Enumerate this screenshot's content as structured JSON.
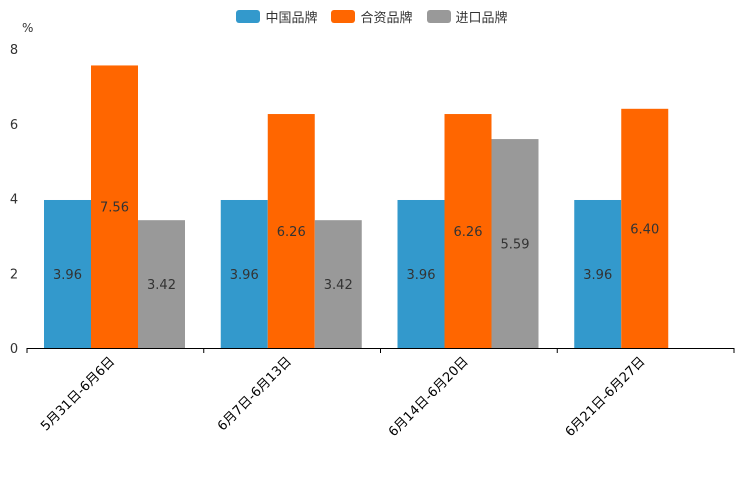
{
  "chart_data": {
    "type": "bar",
    "title": "",
    "xlabel": "",
    "ylabel": "%",
    "ylim": [
      0,
      8
    ],
    "yticks": [
      0,
      2,
      4,
      6,
      8
    ],
    "categories": [
      "5月31日-6月6日",
      "6月7日-6月13日",
      "6月14日-6月20日",
      "6月21日-6月27日"
    ],
    "series": [
      {
        "name": "中国品牌",
        "color": "#3399cc",
        "values": [
          3.96,
          3.96,
          3.96,
          3.96
        ],
        "labels": [
          "3.96",
          "3.96",
          "3.96",
          "3.96"
        ]
      },
      {
        "name": "合资品牌",
        "color": "#ff6600",
        "values": [
          7.56,
          6.26,
          6.26,
          6.4
        ],
        "labels": [
          "7.56",
          "6.26",
          "6.26",
          "6.40"
        ]
      },
      {
        "name": "进口品牌",
        "color": "#999999",
        "values": [
          3.42,
          3.42,
          5.59,
          null
        ],
        "labels": [
          "3.42",
          "3.42",
          "5.59",
          null
        ]
      }
    ],
    "legend_position": "top-center",
    "grid": false
  }
}
